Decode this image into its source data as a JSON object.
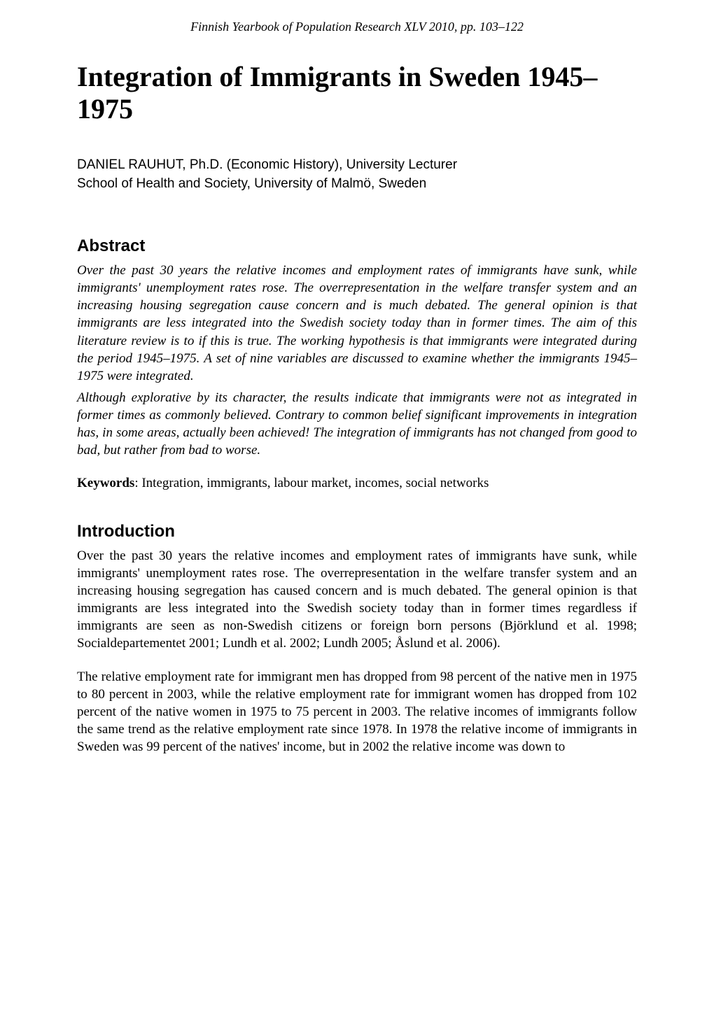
{
  "journal_header": "Finnish Yearbook of Population Research XLV 2010, pp. 103–122",
  "title": "Integration of Immigrants in Sweden 1945–1975",
  "author_line1": "DANIEL RAUHUT, Ph.D. (Economic History), University Lecturer",
  "author_line2": "School of Health and Society, University of Malmö, Sweden",
  "abstract_heading": "Abstract",
  "abstract_p1": "Over the past 30 years the relative incomes and employment rates of immigrants have sunk, while immigrants' unemployment rates rose. The overrepresentation in the welfare transfer system and an increasing housing segregation cause concern and is much debated. The general opinion is that immigrants are less integrated into the Swedish society today than in former times. The aim of this literature review is to if this is true. The working hypothesis is that immigrants were integrated during the period 1945–1975. A set of nine variables are discussed to examine whether the immigrants 1945–1975 were integrated.",
  "abstract_p2": "Although explorative by its character, the results indicate that immigrants were not as integrated in former times as commonly believed. Contrary to common belief significant improvements in integration has, in some areas, actually been achieved! The integration of immigrants has not changed from good to bad, but rather from bad to worse.",
  "keywords_label": "Keywords",
  "keywords_text": ": Integration, immigrants, labour market, incomes, social networks",
  "introduction_heading": "Introduction",
  "intro_p1": "Over the past 30 years the relative incomes and employment rates of immigrants have sunk, while immigrants' unemployment rates rose. The overrepresentation in the welfare transfer system and an increasing housing segregation has caused concern and is much debated. The general opinion is that immigrants are less integrated into the Swedish society today than in former times regardless if immigrants are seen as non-Swedish citizens or foreign born persons (Björklund et al. 1998; Socialdepartementet 2001; Lundh et al. 2002; Lundh 2005; Åslund et al. 2006).",
  "intro_p2": "The relative employment rate for immigrant men has dropped from 98 percent of the native men in 1975 to 80 percent in 2003, while the relative employment rate for immigrant women has dropped from 102 percent of the native women in 1975 to 75 percent in 2003. The relative incomes of immigrants follow the same trend as the relative employment rate since 1978. In 1978 the relative income of immigrants in Sweden was 99 percent of the natives' income, but in 2002 the relative income was down to"
}
